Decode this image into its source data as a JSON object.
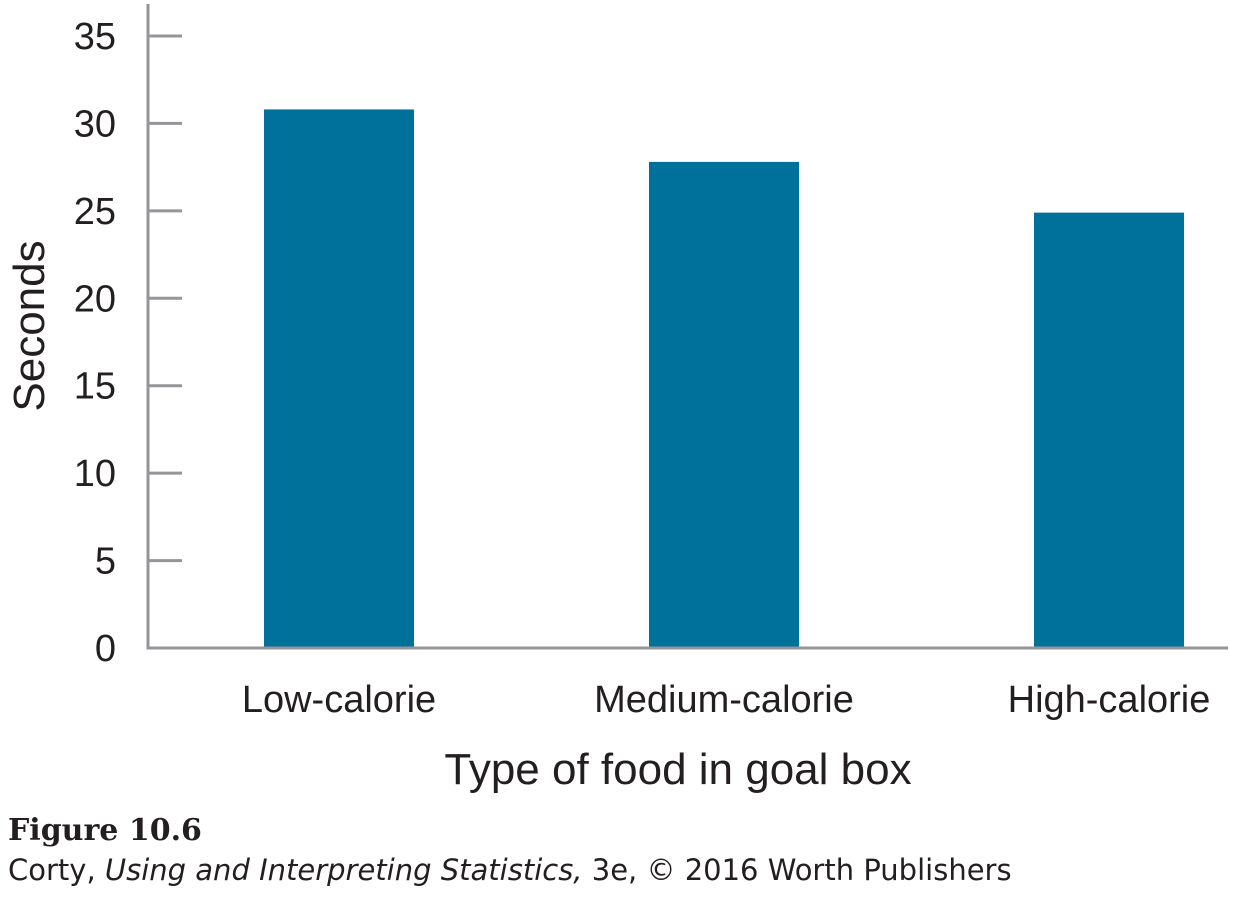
{
  "chart_data": {
    "type": "bar",
    "categories": [
      "Low-calorie",
      "Medium-calorie",
      "High-calorie"
    ],
    "values": [
      30.8,
      27.8,
      24.9
    ],
    "xlabel": "Type of food in goal box",
    "ylabel": "Seconds",
    "ylim": [
      0,
      35
    ],
    "yticks": [
      0,
      5,
      10,
      15,
      20,
      25,
      30,
      35
    ],
    "grid": false,
    "legend": "none",
    "bar_color": "#00719a",
    "axis_color": "#939598"
  },
  "caption": {
    "figure_number": "Figure 10.6",
    "author": "Corty,",
    "book_title": "Using and Interpreting Statistics,",
    "rest": "3e, © 2016 Worth Publishers"
  }
}
